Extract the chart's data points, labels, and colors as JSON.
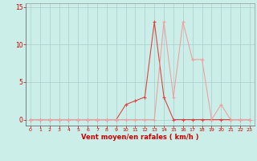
{
  "line1_x": [
    0,
    1,
    2,
    3,
    4,
    5,
    6,
    7,
    8,
    9,
    10,
    11,
    12,
    13,
    14,
    15,
    16,
    17,
    18,
    19,
    20,
    21,
    22,
    23
  ],
  "line1_y": [
    0,
    0,
    0,
    0,
    0,
    0,
    0,
    0,
    0,
    0,
    2,
    2.5,
    3,
    13,
    3,
    0,
    0,
    0,
    0,
    0,
    0,
    0,
    0,
    0
  ],
  "line2_x": [
    0,
    1,
    2,
    3,
    4,
    5,
    6,
    7,
    8,
    9,
    10,
    11,
    12,
    13,
    14,
    15,
    16,
    17,
    18,
    19,
    20,
    21,
    22,
    23
  ],
  "line2_y": [
    0,
    0,
    0,
    0,
    0,
    0,
    0,
    0,
    0,
    0,
    0,
    0,
    0,
    0,
    13,
    3,
    13,
    8,
    8,
    0,
    2,
    0,
    0,
    0
  ],
  "line1_color": "#dd4444",
  "line2_color": "#f0a0a0",
  "bg_color": "#cceee8",
  "grid_color": "#aacccc",
  "axis_label_color": "#cc0000",
  "tick_color": "#cc0000",
  "xlabel": "Vent moyen/en rafales ( km/h )",
  "xlim": [
    -0.5,
    23.5
  ],
  "ylim": [
    -0.8,
    15.5
  ],
  "yticks": [
    0,
    5,
    10,
    15
  ],
  "xticks": [
    0,
    1,
    2,
    3,
    4,
    5,
    6,
    7,
    8,
    9,
    10,
    11,
    12,
    13,
    14,
    15,
    16,
    17,
    18,
    19,
    20,
    21,
    22,
    23
  ]
}
